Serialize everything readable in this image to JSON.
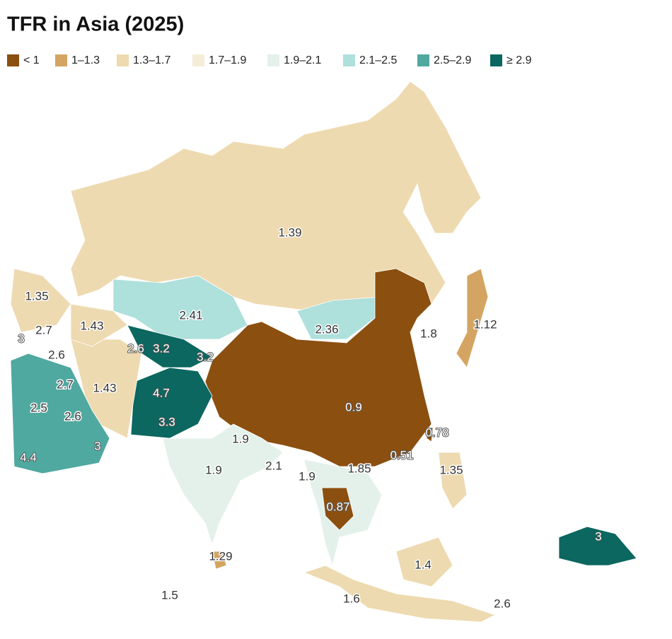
{
  "header": {
    "title": "TFR in Asia (2025)"
  },
  "legend": [
    {
      "label": "< 1",
      "color": "#8b4f10"
    },
    {
      "label": "1–1.3",
      "color": "#d4a562"
    },
    {
      "label": "1.3–1.7",
      "color": "#eedab0"
    },
    {
      "label": "1.7–1.9",
      "color": "#f6edd8"
    },
    {
      "label": "1.9–2.1",
      "color": "#e3f1ea"
    },
    {
      "label": "2.1–2.5",
      "color": "#aee0dc"
    },
    {
      "label": "2.5–2.9",
      "color": "#4fa9a0"
    },
    {
      "label": "≥ 2.9",
      "color": "#0b6760"
    }
  ],
  "regions": [
    {
      "value": 1.39,
      "color": "#eedab0"
    },
    {
      "value": 2.41,
      "color": "#aee0dc"
    },
    {
      "value": 2.36,
      "color": "#aee0dc"
    },
    {
      "value": 0.9,
      "color": "#8b4f10"
    },
    {
      "value": 1.12,
      "color": "#d4a562"
    },
    {
      "value": 0.78,
      "color": "#8b4f10"
    },
    {
      "value": 3.2,
      "color": "#0b6760"
    },
    {
      "value": 4.7,
      "color": "#0b6760"
    },
    {
      "value": 1.43,
      "color": "#eedab0"
    },
    {
      "value": 2.5,
      "color": "#4fa9a0"
    },
    {
      "value": 1.35,
      "color": "#eedab0"
    },
    {
      "value": 1.43,
      "color": "#eedab0"
    },
    {
      "value": 1.9,
      "color": "#e3f1ea"
    },
    {
      "value": 1.9,
      "color": "#e3f1ea"
    },
    {
      "value": 0.87,
      "color": "#8b4f10"
    },
    {
      "value": 1.29,
      "color": "#d4a562"
    },
    {
      "value": 1.6,
      "color": "#eedab0"
    },
    {
      "value": 1.4,
      "color": "#eedab0"
    },
    {
      "value": 1.35,
      "color": "#eedab0"
    },
    {
      "value": 3,
      "color": "#0b6760"
    },
    {
      "value": 0.51,
      "color": "#8b4f10"
    },
    {
      "value": 3,
      "color": "#0b6760"
    },
    {
      "value": 2.7,
      "color": "#4fa9a0"
    },
    {
      "value": 2.6,
      "color": "#4fa9a0"
    },
    {
      "value": 2.7,
      "color": "#4fa9a0"
    },
    {
      "value": 2.6,
      "color": "#4fa9a0"
    },
    {
      "value": 3,
      "color": "#0b6760"
    },
    {
      "value": 4.4,
      "color": "#0b6760"
    },
    {
      "value": 2.6,
      "color": "#4fa9a0"
    },
    {
      "value": 3.2,
      "color": "#0b6760"
    },
    {
      "value": 3.3,
      "color": "#0b6760"
    },
    {
      "value": 1.8,
      "color": "#f6edd8"
    },
    {
      "value": 1.9,
      "color": "#e3f1ea"
    },
    {
      "value": 2.1,
      "color": "#aee0dc"
    },
    {
      "value": 1.85,
      "color": "#f6edd8"
    },
    {
      "value": 2.6,
      "color": "#4fa9a0"
    },
    {
      "value": 1.5,
      "color": "#eedab0"
    }
  ]
}
